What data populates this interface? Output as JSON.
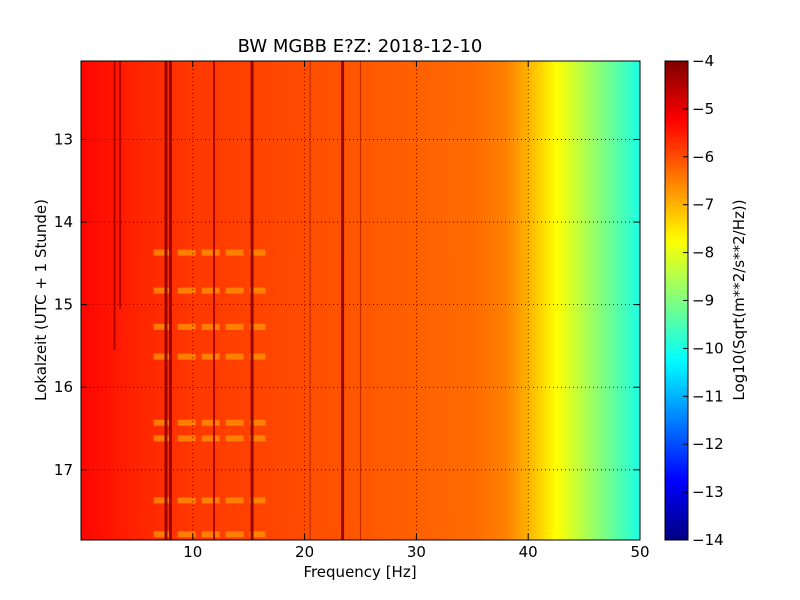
{
  "chart_data": {
    "type": "heatmap",
    "title": "BW MGBB E?Z: 2018-12-10",
    "xlabel": "Frequency [Hz]",
    "ylabel": "Lokalzeit (UTC + 1 Stunde)",
    "xlim": [
      0,
      50
    ],
    "ylim": [
      12.05,
      17.85
    ],
    "y_inverted": true,
    "x_ticks": [
      10,
      20,
      30,
      40,
      50
    ],
    "y_ticks": [
      13,
      14,
      15,
      16,
      17
    ],
    "grid": true,
    "colormap": "jet",
    "colorbar": {
      "label": "Log10(Sqrt(m**2/s**2/Hz))",
      "range": [
        -14,
        -4
      ],
      "ticks": [
        -4,
        -5,
        -6,
        -7,
        -8,
        -9,
        -10,
        -11,
        -12,
        -13,
        -14
      ]
    },
    "level_profile": {
      "frequency": [
        0,
        5,
        10,
        20,
        30,
        35,
        38,
        40,
        42,
        44,
        46,
        48,
        50
      ],
      "log10_amplitude": [
        -5.3,
        -5.6,
        -5.8,
        -6.0,
        -6.2,
        -6.3,
        -6.5,
        -7.0,
        -7.6,
        -8.2,
        -8.8,
        -9.4,
        -10.0
      ]
    },
    "spectral_lines": [
      {
        "frequency": 3.0,
        "time_range": [
          12.05,
          15.55
        ],
        "strength": "moderate"
      },
      {
        "frequency": 3.5,
        "time_range": [
          12.05,
          15.05
        ],
        "strength": "moderate"
      },
      {
        "frequency": 7.6,
        "time_range": [
          12.05,
          17.85
        ],
        "strength": "strong"
      },
      {
        "frequency": 8.0,
        "time_range": [
          12.05,
          17.85
        ],
        "strength": "strong"
      },
      {
        "frequency": 11.9,
        "time_range": [
          12.05,
          17.85
        ],
        "strength": "moderate"
      },
      {
        "frequency": 15.3,
        "time_range": [
          12.05,
          17.85
        ],
        "strength": "strong"
      },
      {
        "frequency": 20.5,
        "time_range": [
          12.05,
          17.85
        ],
        "strength": "weak"
      },
      {
        "frequency": 23.4,
        "time_range": [
          12.05,
          17.85
        ],
        "strength": "strong"
      },
      {
        "frequency": 25.0,
        "time_range": [
          12.05,
          17.85
        ],
        "strength": "weak"
      }
    ],
    "horizontal_bands": [
      {
        "time": 14.37,
        "frequency_range": [
          6.5,
          16.5
        ]
      },
      {
        "time": 14.83,
        "frequency_range": [
          6.5,
          16.5
        ]
      },
      {
        "time": 15.27,
        "frequency_range": [
          6.5,
          16.5
        ]
      },
      {
        "time": 15.63,
        "frequency_range": [
          6.5,
          16.5
        ]
      },
      {
        "time": 16.43,
        "frequency_range": [
          6.5,
          16.5
        ]
      },
      {
        "time": 16.62,
        "frequency_range": [
          6.5,
          16.5
        ]
      },
      {
        "time": 17.37,
        "frequency_range": [
          6.5,
          16.5
        ]
      },
      {
        "time": 17.78,
        "frequency_range": [
          6.5,
          16.5
        ]
      }
    ]
  }
}
